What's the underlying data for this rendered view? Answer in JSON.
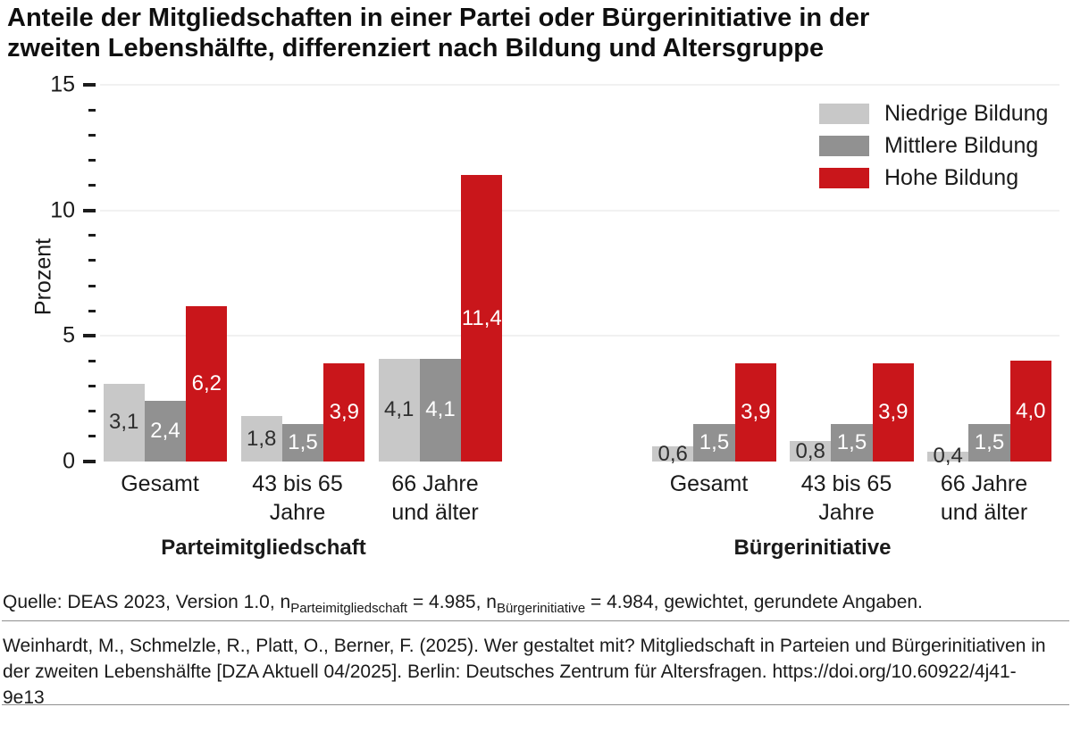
{
  "title": {
    "lines": [
      "Anteile der Mitgliedschaften in einer Partei oder Bürgerinitiative in der",
      "zweiten Lebenshälfte, differenziert nach Bildung und Altersgruppe"
    ]
  },
  "legend": {
    "items": [
      {
        "label": "Niedrige Bildung",
        "color": "#c8c8c8"
      },
      {
        "label": "Mittlere Bildung",
        "color": "#919191"
      },
      {
        "label": "Hohe Bildung",
        "color": "#c9161b"
      }
    ]
  },
  "chart_data": {
    "type": "bar",
    "title": "Anteile der Mitgliedschaften in einer Partei oder Bürgerinitiative in der zweiten Lebenshälfte, differenziert nach Bildung und Altersgruppe",
    "ylabel": "Prozent",
    "ylim": [
      0,
      15
    ],
    "yticks_major": [
      0,
      5,
      10,
      15
    ],
    "ytick_minor_step": 1,
    "grid": "horizontal gridlines at major ticks, light gray",
    "legend_position": "top-right",
    "series_names": [
      "Niedrige Bildung",
      "Mittlere Bildung",
      "Hohe Bildung"
    ],
    "series_colors": [
      "#c8c8c8",
      "#919191",
      "#c9161b"
    ],
    "value_label_colors": [
      "#2e2e2e",
      "#ffffff",
      "#ffffff"
    ],
    "panels": [
      {
        "title": "Parteimitgliedschaft",
        "categories": [
          [
            "Gesamt"
          ],
          [
            "43 bis 65",
            "Jahre"
          ],
          [
            "66 Jahre",
            "und älter"
          ]
        ],
        "series": [
          {
            "name": "Niedrige Bildung",
            "values": [
              3.1,
              1.8,
              4.1
            ]
          },
          {
            "name": "Mittlere Bildung",
            "values": [
              2.4,
              1.5,
              4.1
            ]
          },
          {
            "name": "Hohe Bildung",
            "values": [
              6.2,
              3.9,
              11.4
            ]
          }
        ],
        "value_labels": [
          [
            "3,1",
            "2,4",
            "6,2"
          ],
          [
            "1,8",
            "1,5",
            "3,9"
          ],
          [
            "4,1",
            "4,1",
            "11,4"
          ]
        ]
      },
      {
        "title": "Bürgerinitiative",
        "categories": [
          [
            "Gesamt"
          ],
          [
            "43 bis 65",
            "Jahre"
          ],
          [
            "66 Jahre",
            "und älter"
          ]
        ],
        "series": [
          {
            "name": "Niedrige Bildung",
            "values": [
              0.6,
              0.8,
              0.4
            ]
          },
          {
            "name": "Mittlere Bildung",
            "values": [
              1.5,
              1.5,
              1.5
            ]
          },
          {
            "name": "Hohe Bildung",
            "values": [
              3.9,
              3.9,
              4.0
            ]
          }
        ],
        "value_labels": [
          [
            "0,6",
            "1,5",
            "3,9"
          ],
          [
            "0,8",
            "1,5",
            "3,9"
          ],
          [
            "0,4",
            "1,5",
            "4,0"
          ]
        ]
      }
    ]
  },
  "footer": {
    "source": {
      "part1": "Quelle: DEAS 2023, Version 1.0, n",
      "sub1": "Parteimitgliedschaft",
      "part2": " = 4.985, n",
      "sub2": "Bürgerinitiative",
      "part3": " = 4.984, gewichtet, gerundete Angaben."
    },
    "citation_lines": [
      "Weinhardt, M., Schmelzle, R., Platt, O., Berner, F. (2025). Wer gestaltet mit? Mitgliedschaft in Parteien und Bürgerinitiativen in",
      "der zweiten Lebenshälfte [DZA Aktuell 04/2025]. Berlin: Deutsches Zentrum für Altersfragen. https://doi.org/10.60922/4j41-",
      "9e13"
    ]
  }
}
